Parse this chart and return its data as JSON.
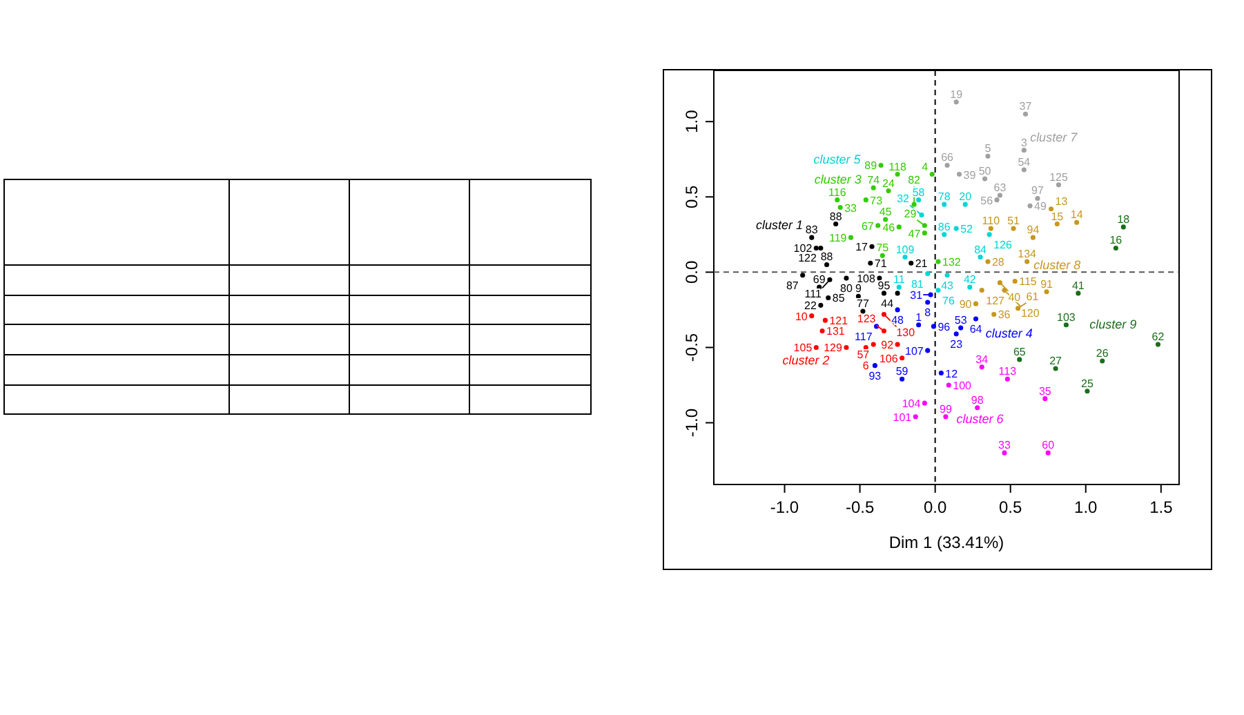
{
  "chart_data": {
    "type": "scatter",
    "xlabel": "Dim 1 (33.41%)",
    "xlim": [
      -1.47,
      1.62
    ],
    "ylim": [
      -1.41,
      1.34
    ],
    "xticks": [
      {
        "value": -1,
        "label": "-1.0"
      },
      {
        "value": -0.5,
        "label": "-0.5"
      },
      {
        "value": 0,
        "label": "0.0"
      },
      {
        "value": 0.5,
        "label": "0.5"
      },
      {
        "value": 1,
        "label": "1.0"
      },
      {
        "value": 1.5,
        "label": "1.5"
      }
    ],
    "yticks": [
      {
        "value": -1,
        "label": "-1.0"
      },
      {
        "value": -0.5,
        "label": "-0.5"
      },
      {
        "value": 0,
        "label": "0.0"
      },
      {
        "value": 0.5,
        "label": "0.5"
      },
      {
        "value": 1,
        "label": "1.0"
      }
    ],
    "grid": false,
    "marker": "circle",
    "legend": false,
    "ref_lines": [
      {
        "axis": "x",
        "value": 0,
        "line_style": "dashed",
        "color": "#000000"
      },
      {
        "axis": "y",
        "value": 0,
        "line_style": "dashed",
        "color": "#555555"
      }
    ],
    "series": [
      {
        "name": "cluster 1",
        "color": "#000000",
        "x": [
          -0.82,
          -0.79,
          -0.76,
          -0.66,
          -0.42,
          -0.43,
          -0.72,
          -0.88,
          -0.7,
          -0.59,
          -0.37,
          -0.77,
          -0.71,
          -0.76,
          -0.51,
          -0.34,
          -0.25,
          -0.48,
          -0.16
        ],
        "values": [
          0.23,
          0.16,
          0.16,
          0.32,
          0.17,
          0.06,
          0.05,
          -0.02,
          -0.05,
          -0.04,
          -0.04,
          -0.1,
          -0.17,
          -0.22,
          -0.16,
          -0.14,
          -0.14,
          -0.26,
          0.06
        ]
      },
      {
        "name": "cluster 2",
        "color": "#ff0000",
        "x": [
          -0.82,
          -0.73,
          -0.75,
          -0.34,
          -0.34,
          -0.79,
          -0.59,
          -0.46,
          -0.41,
          -0.25,
          -0.22
        ],
        "values": [
          -0.29,
          -0.32,
          -0.39,
          -0.28,
          -0.39,
          -0.5,
          -0.5,
          -0.5,
          -0.48,
          -0.48,
          -0.57
        ]
      },
      {
        "name": "cluster 3",
        "color": "#33cc00",
        "x": [
          -0.36,
          -0.25,
          -0.02,
          -0.41,
          -0.31,
          -0.65,
          -0.46,
          -0.63,
          -0.14,
          -0.33,
          -0.38,
          -0.24,
          -0.07,
          -0.07,
          -0.56,
          -0.35,
          0.02
        ],
        "values": [
          0.71,
          0.65,
          0.65,
          0.56,
          0.54,
          0.48,
          0.48,
          0.43,
          0.45,
          0.35,
          0.31,
          0.3,
          0.31,
          0.26,
          0.23,
          0.11,
          0.07
        ]
      },
      {
        "name": "cluster 4",
        "color": "#0000ff",
        "x": [
          -0.03,
          -0.05,
          -0.25,
          -0.11,
          -0.01,
          0.17,
          0.27,
          0.14,
          -0.05,
          -0.4,
          -0.22,
          0.04,
          -0.39
        ],
        "values": [
          -0.15,
          -0.2,
          -0.25,
          -0.35,
          -0.36,
          -0.37,
          -0.31,
          -0.41,
          -0.52,
          -0.62,
          -0.71,
          -0.67,
          -0.36
        ]
      },
      {
        "name": "cluster 5",
        "color": "#00d5d5",
        "x": [
          -0.11,
          -0.09,
          0.06,
          0.2,
          0.14,
          0.06,
          -0.2,
          0.36,
          0.3,
          -0.05,
          0.08,
          -0.24,
          0.02,
          0.23
        ],
        "values": [
          0.48,
          0.38,
          0.45,
          0.45,
          0.29,
          0.25,
          0.1,
          0.25,
          0.1,
          -0.01,
          -0.02,
          -0.1,
          -0.12,
          -0.1
        ]
      },
      {
        "name": "cluster 6",
        "color": "#ff00ff",
        "x": [
          0.31,
          0.48,
          0.09,
          -0.07,
          -0.13,
          0.07,
          0.28,
          0.73,
          0.46,
          0.75
        ],
        "values": [
          -0.63,
          -0.71,
          -0.75,
          -0.87,
          -0.96,
          -0.96,
          -0.9,
          -0.84,
          -1.2,
          -1.2
        ]
      },
      {
        "name": "cluster 7",
        "color": "#a0a0a0",
        "x": [
          0.14,
          0.6,
          0.59,
          0.35,
          0.59,
          0.08,
          0.16,
          0.33,
          0.82,
          0.43,
          0.41,
          0.68,
          0.63
        ],
        "values": [
          1.13,
          1.05,
          0.81,
          0.77,
          0.68,
          0.71,
          0.65,
          0.62,
          0.58,
          0.51,
          0.48,
          0.49,
          0.44
        ]
      },
      {
        "name": "cluster 8",
        "color": "#c8961e",
        "x": [
          0.77,
          0.81,
          0.94,
          0.37,
          0.52,
          0.65,
          0.61,
          0.35,
          0.43,
          0.53,
          0.31,
          0.46,
          0.74,
          0.27,
          0.39,
          0.55
        ],
        "values": [
          0.42,
          0.32,
          0.33,
          0.29,
          0.29,
          0.23,
          0.07,
          0.07,
          -0.07,
          -0.06,
          -0.12,
          -0.12,
          -0.13,
          -0.21,
          -0.28,
          -0.24
        ]
      },
      {
        "name": "cluster 9",
        "color": "#1a6e1a",
        "x": [
          1.25,
          1.2,
          0.95,
          0.87,
          0.56,
          0.8,
          1.11,
          1.01,
          1.48
        ],
        "values": [
          0.3,
          0.16,
          -0.14,
          -0.35,
          -0.58,
          -0.64,
          -0.59,
          -0.79,
          -0.48
        ]
      }
    ],
    "annotations": [
      {
        "text": "83",
        "x": -0.82,
        "y": 0.23
      },
      {
        "text": "102",
        "x": -0.79,
        "y": 0.16
      },
      {
        "text": "122",
        "x": -0.76,
        "y": 0.16
      },
      {
        "text": "88",
        "x": -0.66,
        "y": 0.32
      },
      {
        "text": "17",
        "x": -0.42,
        "y": 0.17
      },
      {
        "text": "71",
        "x": -0.43,
        "y": 0.06
      },
      {
        "text": "88",
        "x": -0.72,
        "y": 0.05
      },
      {
        "text": "87",
        "x": -0.88,
        "y": -0.02
      },
      {
        "text": "111",
        "x": -0.7,
        "y": -0.05
      },
      {
        "text": "80",
        "x": -0.59,
        "y": -0.04
      },
      {
        "text": "108",
        "x": -0.37,
        "y": -0.04
      },
      {
        "text": "69",
        "x": -0.77,
        "y": -0.1
      },
      {
        "text": "85",
        "x": -0.71,
        "y": -0.17
      },
      {
        "text": "22",
        "x": -0.76,
        "y": -0.22
      },
      {
        "text": "9",
        "x": -0.51,
        "y": -0.16
      },
      {
        "text": "95",
        "x": -0.34,
        "y": -0.14
      },
      {
        "text": "44",
        "x": -0.25,
        "y": -0.14
      },
      {
        "text": "77",
        "x": -0.48,
        "y": -0.26
      },
      {
        "text": "21",
        "x": -0.16,
        "y": 0.06
      },
      {
        "text": "10",
        "x": -0.82,
        "y": -0.29
      },
      {
        "text": "121",
        "x": -0.73,
        "y": -0.32
      },
      {
        "text": "131",
        "x": -0.75,
        "y": -0.39
      },
      {
        "text": "130",
        "x": -0.34,
        "y": -0.28
      },
      {
        "text": "123",
        "x": -0.34,
        "y": -0.39
      },
      {
        "text": "105",
        "x": -0.79,
        "y": -0.5
      },
      {
        "text": "129",
        "x": -0.59,
        "y": -0.5
      },
      {
        "text": "6",
        "x": -0.46,
        "y": -0.5
      },
      {
        "text": "57",
        "x": -0.41,
        "y": -0.48
      },
      {
        "text": "92",
        "x": -0.25,
        "y": -0.48
      },
      {
        "text": "106",
        "x": -0.22,
        "y": -0.57
      },
      {
        "text": "89",
        "x": -0.36,
        "y": 0.71
      },
      {
        "text": "118",
        "x": -0.25,
        "y": 0.65
      },
      {
        "text": "4",
        "x": -0.02,
        "y": 0.65
      },
      {
        "text": "74",
        "x": -0.41,
        "y": 0.56
      },
      {
        "text": "24",
        "x": -0.31,
        "y": 0.54
      },
      {
        "text": "116",
        "x": -0.65,
        "y": 0.48
      },
      {
        "text": "73",
        "x": -0.46,
        "y": 0.48
      },
      {
        "text": "33",
        "x": -0.63,
        "y": 0.43
      },
      {
        "text": "82",
        "x": -0.14,
        "y": 0.45
      },
      {
        "text": "45",
        "x": -0.33,
        "y": 0.35
      },
      {
        "text": "67",
        "x": -0.38,
        "y": 0.31
      },
      {
        "text": "46",
        "x": -0.24,
        "y": 0.3
      },
      {
        "text": "29",
        "x": -0.07,
        "y": 0.31
      },
      {
        "text": "47",
        "x": -0.07,
        "y": 0.26
      },
      {
        "text": "119",
        "x": -0.56,
        "y": 0.23
      },
      {
        "text": "75",
        "x": -0.35,
        "y": 0.11
      },
      {
        "text": "132",
        "x": 0.02,
        "y": 0.07
      },
      {
        "text": "31",
        "x": -0.03,
        "y": -0.15
      },
      {
        "text": "8",
        "x": -0.05,
        "y": -0.2
      },
      {
        "text": "48",
        "x": -0.25,
        "y": -0.25
      },
      {
        "text": "1",
        "x": -0.11,
        "y": -0.35
      },
      {
        "text": "96",
        "x": -0.01,
        "y": -0.36
      },
      {
        "text": "53",
        "x": 0.17,
        "y": -0.37
      },
      {
        "text": "64",
        "x": 0.27,
        "y": -0.31
      },
      {
        "text": "23",
        "x": 0.14,
        "y": -0.41
      },
      {
        "text": "107",
        "x": -0.05,
        "y": -0.52
      },
      {
        "text": "93",
        "x": -0.4,
        "y": -0.62
      },
      {
        "text": "59",
        "x": -0.22,
        "y": -0.71
      },
      {
        "text": "12",
        "x": 0.04,
        "y": -0.67
      },
      {
        "text": "117",
        "x": -0.39,
        "y": -0.36
      },
      {
        "text": "58",
        "x": -0.11,
        "y": 0.48
      },
      {
        "text": "32",
        "x": -0.09,
        "y": 0.38
      },
      {
        "text": "78",
        "x": 0.06,
        "y": 0.45
      },
      {
        "text": "20",
        "x": 0.2,
        "y": 0.45
      },
      {
        "text": "52",
        "x": 0.14,
        "y": 0.29
      },
      {
        "text": "86",
        "x": 0.06,
        "y": 0.25
      },
      {
        "text": "109",
        "x": -0.2,
        "y": 0.1
      },
      {
        "text": "126",
        "x": 0.36,
        "y": 0.25
      },
      {
        "text": "84",
        "x": 0.3,
        "y": 0.1
      },
      {
        "text": "81",
        "x": -0.05,
        "y": -0.01
      },
      {
        "text": "43",
        "x": 0.08,
        "y": -0.02
      },
      {
        "text": "11",
        "x": -0.24,
        "y": -0.1
      },
      {
        "text": "76",
        "x": 0.02,
        "y": -0.12
      },
      {
        "text": "42",
        "x": 0.23,
        "y": -0.1
      },
      {
        "text": "34",
        "x": 0.31,
        "y": -0.63
      },
      {
        "text": "113",
        "x": 0.48,
        "y": -0.71
      },
      {
        "text": "100",
        "x": 0.09,
        "y": -0.75
      },
      {
        "text": "104",
        "x": -0.07,
        "y": -0.87
      },
      {
        "text": "101",
        "x": -0.13,
        "y": -0.96
      },
      {
        "text": "99",
        "x": 0.07,
        "y": -0.96
      },
      {
        "text": "98",
        "x": 0.28,
        "y": -0.9
      },
      {
        "text": "35",
        "x": 0.73,
        "y": -0.84
      },
      {
        "text": "33",
        "x": 0.46,
        "y": -1.2
      },
      {
        "text": "60",
        "x": 0.75,
        "y": -1.2
      },
      {
        "text": "19",
        "x": 0.14,
        "y": 1.13
      },
      {
        "text": "37",
        "x": 0.6,
        "y": 1.05
      },
      {
        "text": "3",
        "x": 0.59,
        "y": 0.81
      },
      {
        "text": "5",
        "x": 0.35,
        "y": 0.77
      },
      {
        "text": "54",
        "x": 0.59,
        "y": 0.68
      },
      {
        "text": "66",
        "x": 0.08,
        "y": 0.71
      },
      {
        "text": "39",
        "x": 0.16,
        "y": 0.65
      },
      {
        "text": "50",
        "x": 0.33,
        "y": 0.62
      },
      {
        "text": "125",
        "x": 0.82,
        "y": 0.58
      },
      {
        "text": "63",
        "x": 0.43,
        "y": 0.51
      },
      {
        "text": "56",
        "x": 0.41,
        "y": 0.48
      },
      {
        "text": "97",
        "x": 0.68,
        "y": 0.49
      },
      {
        "text": "49",
        "x": 0.63,
        "y": 0.44
      },
      {
        "text": "13",
        "x": 0.77,
        "y": 0.42
      },
      {
        "text": "15",
        "x": 0.81,
        "y": 0.32
      },
      {
        "text": "14",
        "x": 0.94,
        "y": 0.33
      },
      {
        "text": "110",
        "x": 0.37,
        "y": 0.29
      },
      {
        "text": "51",
        "x": 0.52,
        "y": 0.29
      },
      {
        "text": "94",
        "x": 0.65,
        "y": 0.23
      },
      {
        "text": "134",
        "x": 0.61,
        "y": 0.07
      },
      {
        "text": "28",
        "x": 0.35,
        "y": 0.07
      },
      {
        "text": "40",
        "x": 0.43,
        "y": -0.07
      },
      {
        "text": "115",
        "x": 0.53,
        "y": -0.06
      },
      {
        "text": "127",
        "x": 0.31,
        "y": -0.12
      },
      {
        "text": "120",
        "x": 0.46,
        "y": -0.12
      },
      {
        "text": "91",
        "x": 0.74,
        "y": -0.13
      },
      {
        "text": "90",
        "x": 0.27,
        "y": -0.21
      },
      {
        "text": "36",
        "x": 0.39,
        "y": -0.28
      },
      {
        "text": "61",
        "x": 0.55,
        "y": -0.24
      },
      {
        "text": "18",
        "x": 1.25,
        "y": 0.3
      },
      {
        "text": "16",
        "x": 1.2,
        "y": 0.16
      },
      {
        "text": "41",
        "x": 0.95,
        "y": -0.14
      },
      {
        "text": "103",
        "x": 0.87,
        "y": -0.35
      },
      {
        "text": "65",
        "x": 0.56,
        "y": -0.58
      },
      {
        "text": "27",
        "x": 0.8,
        "y": -0.64
      },
      {
        "text": "26",
        "x": 1.11,
        "y": -0.59
      },
      {
        "text": "25",
        "x": 1.01,
        "y": -0.79
      },
      {
        "text": "62",
        "x": 1.48,
        "y": -0.48
      }
    ]
  }
}
